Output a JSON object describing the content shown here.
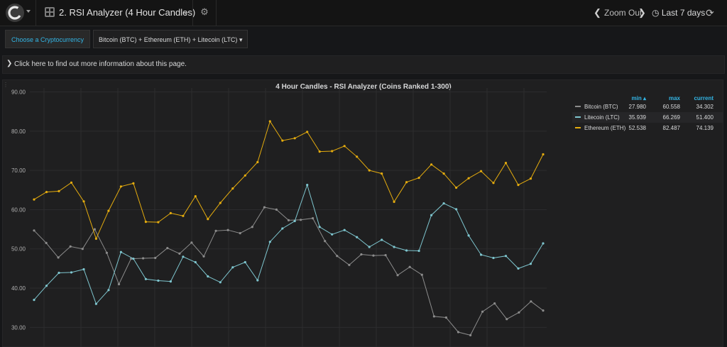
{
  "topbar": {
    "dashboard_title": "2. RSI Analyzer (4 Hour Candles)",
    "zoom_out": "Zoom Out",
    "time_range": "Last 7 days"
  },
  "variables": {
    "label": "Choose a Cryptocurrency",
    "value": "Bitcoin (BTC) + Ethereum (ETH) + Litecoin (LTC)"
  },
  "info_row": {
    "text": "Click here to find out more information about this page."
  },
  "legend": {
    "col_min": "min",
    "col_max": "max",
    "col_current": "current",
    "rows": [
      {
        "name": "Bitcoin (BTC)",
        "min": "27.980",
        "max": "60.558",
        "current": "34.302",
        "color": "#8c8c8c"
      },
      {
        "name": "Litecoin (LTC)",
        "min": "35.939",
        "max": "66.269",
        "current": "51.400",
        "color": "#7ec6cf"
      },
      {
        "name": "Ethereum (ETH)",
        "min": "52.538",
        "max": "82.487",
        "current": "74.139",
        "color": "#e5ac0e"
      }
    ]
  },
  "chart_data": {
    "type": "line",
    "title": "4 Hour Candles - RSI Analyzer (Coins Ranked 1-300)",
    "ylim": [
      25,
      91
    ],
    "yticks": [
      "90.00",
      "80.00",
      "70.00",
      "60.00",
      "50.00",
      "40.00",
      "30.00"
    ],
    "grid": true,
    "legend_position": "right",
    "series": [
      {
        "name": "Bitcoin (BTC)",
        "color": "#8c8c8c",
        "values": [
          54.7,
          51.5,
          47.8,
          50.6,
          50.0,
          55.0,
          49.0,
          41.0,
          47.5,
          47.6,
          47.7,
          50.2,
          48.8,
          51.6,
          48.1,
          54.6,
          54.8,
          54.0,
          55.6,
          60.6,
          60.0,
          57.3,
          57.4,
          57.8,
          52.0,
          48.2,
          45.9,
          48.6,
          48.3,
          48.4,
          43.3,
          45.4,
          43.4,
          32.8,
          32.5,
          28.8,
          28.0,
          34.0,
          36.1,
          32.1,
          33.8,
          36.6,
          34.3
        ]
      },
      {
        "name": "Litecoin (LTC)",
        "color": "#7ec6cf",
        "values": [
          37.0,
          40.6,
          43.9,
          44.0,
          44.8,
          36.0,
          39.5,
          49.2,
          47.5,
          42.3,
          41.9,
          41.7,
          48.0,
          46.6,
          43.0,
          41.5,
          45.3,
          46.6,
          42.0,
          51.8,
          55.2,
          57.1,
          66.3,
          55.6,
          53.7,
          54.8,
          53.0,
          50.5,
          52.3,
          50.5,
          49.6,
          49.5,
          58.6,
          61.6,
          60.1,
          53.4,
          48.5,
          47.7,
          48.2,
          45.0,
          46.2,
          51.4
        ]
      },
      {
        "name": "Ethereum (ETH)",
        "color": "#e5ac0e",
        "values": [
          62.6,
          64.5,
          64.7,
          66.9,
          62.1,
          52.6,
          59.7,
          65.9,
          66.7,
          56.9,
          56.8,
          59.1,
          58.4,
          63.4,
          57.6,
          61.7,
          65.4,
          68.7,
          72.1,
          82.5,
          77.6,
          78.2,
          79.8,
          74.8,
          74.9,
          76.2,
          73.5,
          70.0,
          69.2,
          62.0,
          67.0,
          68.1,
          71.5,
          69.2,
          65.6,
          68.0,
          69.8,
          66.8,
          71.9,
          66.3,
          67.9,
          74.1
        ]
      }
    ]
  }
}
